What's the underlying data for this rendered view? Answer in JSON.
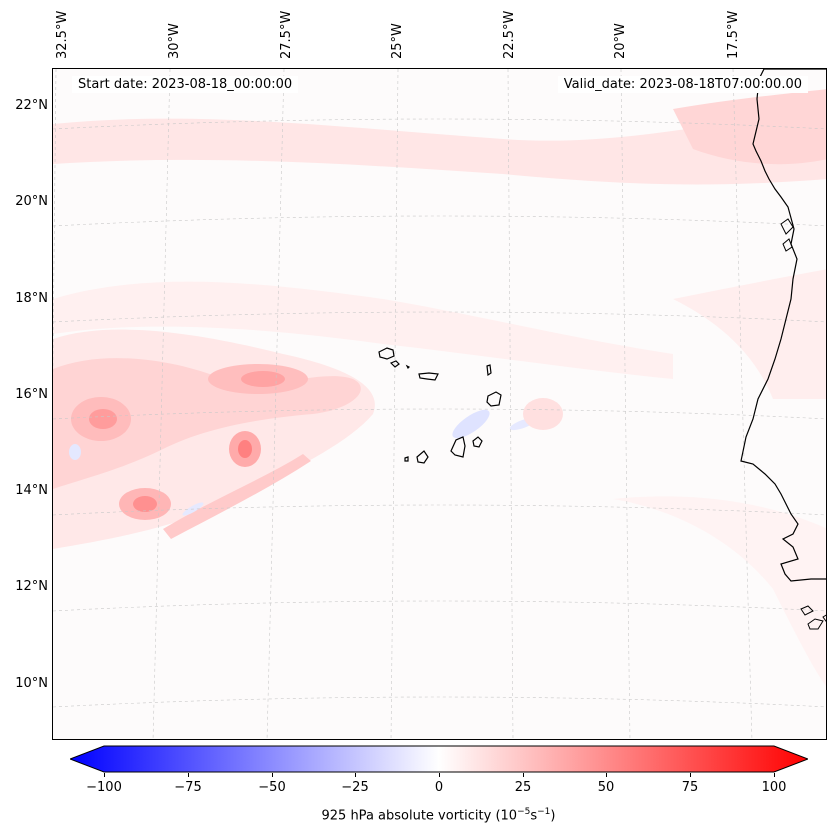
{
  "map": {
    "start_date": "Start date: 2023-08-18_00:00:00",
    "valid_date": "Valid_date: 2023-08-18T07:00:00.00",
    "lon_labels": [
      "32.5°W",
      "30°W",
      "27.5°W",
      "25°W",
      "22.5°W",
      "20°W",
      "17.5°W"
    ],
    "lat_labels": [
      "22°N",
      "20°N",
      "18°N",
      "16°N",
      "14°N",
      "12°N",
      "10°N"
    ],
    "colors": {
      "positive": "#ff0000",
      "negative": "#0000ff",
      "neutral": "#ffffff",
      "coast": "#000000"
    }
  },
  "colorbar": {
    "ticks": [
      "−100",
      "−75",
      "−50",
      "−25",
      "0",
      "25",
      "50",
      "75",
      "100"
    ],
    "label_prefix": "925 hPa absolute vorticity (10",
    "label_exp1": "−5",
    "label_mid": "s",
    "label_exp2": "−1",
    "label_suffix": ")"
  }
}
